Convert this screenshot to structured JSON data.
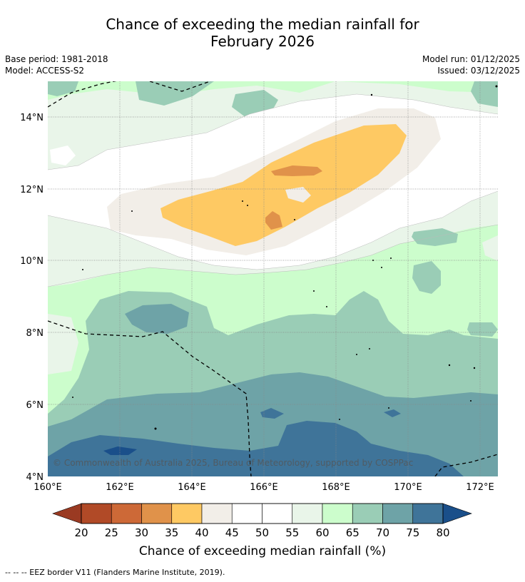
{
  "title": {
    "line1": "Chance of exceeding the median rainfall for",
    "line2": "February 2026"
  },
  "meta": {
    "base_period": "Base period: 1981-2018",
    "model": "Model: ACCESS-S2",
    "model_run": "Model run: 01/12/2025",
    "issued": "Issued: 03/12/2025"
  },
  "map": {
    "lon_range": [
      160,
      172.5
    ],
    "lat_range": [
      4,
      15
    ],
    "x_ticks": [
      "160°E",
      "162°E",
      "164°E",
      "166°E",
      "168°E",
      "170°E",
      "172°E"
    ],
    "y_ticks": [
      "4°N",
      "6°N",
      "8°N",
      "10°N",
      "12°N",
      "14°N"
    ],
    "copyright": "© Commonwealth of Australia 2025, Bureau of Meteorology, supported by COSPPac",
    "colors": {
      "c35_40": "#fec963",
      "c30_35": "#e0924a",
      "c40_45": "#f2eee8",
      "c45_55": "#ffffff",
      "c55_60": "#e9f5e9",
      "c60_65": "#ccfdcc",
      "c65_70": "#9acdb6",
      "c70_75": "#6ea3a7",
      "c75_80": "#3f7499",
      "c80": "#1a4f8a"
    }
  },
  "colorbar": {
    "labels": [
      "20",
      "25",
      "30",
      "35",
      "40",
      "45",
      "50",
      "55",
      "60",
      "65",
      "70",
      "75",
      "80"
    ],
    "colors": [
      "#b14a27",
      "#cd6937",
      "#e0924a",
      "#fec963",
      "#f2eee8",
      "#ffffff",
      "#ffffff",
      "#e9f5e9",
      "#ccfdcc",
      "#9acdb6",
      "#6ea3a7",
      "#3f7499"
    ],
    "low_arrow_color": "#9a3a22",
    "high_arrow_color": "#1a4f8a",
    "label": "Chance of exceeding median rainfall (%)"
  },
  "footer": {
    "legend": "-- -- -- EEZ border V11 (Flanders Marine Institute, 2019)."
  }
}
